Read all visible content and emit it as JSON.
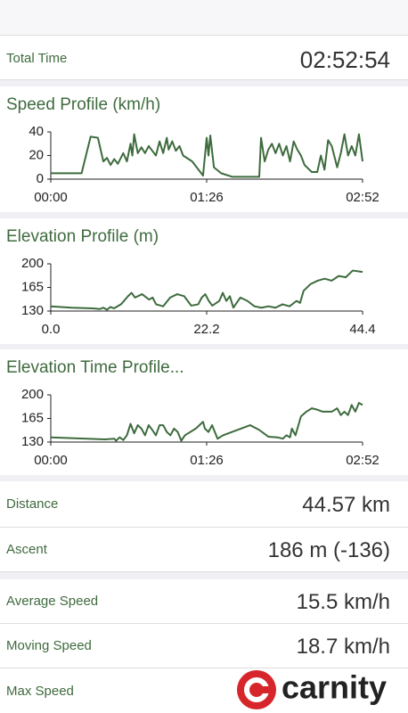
{
  "stats": {
    "total_time": {
      "label": "Total Time",
      "value": "02:52:54"
    },
    "distance": {
      "label": "Distance",
      "value": "44.57 km"
    },
    "ascent": {
      "label": "Ascent",
      "value": "186 m (-136)"
    },
    "average_speed": {
      "label": "Average Speed",
      "value": "15.5 km/h"
    },
    "moving_speed": {
      "label": "Moving Speed",
      "value": "18.7 km/h"
    },
    "max_speed": {
      "label": "Max Speed"
    }
  },
  "logo": {
    "text": "carnity"
  },
  "chart_data": [
    {
      "type": "line",
      "title": "Speed Profile (km/h)",
      "color": "#3d6b3d",
      "x": [
        0,
        17,
        22,
        26,
        29,
        31,
        33,
        35,
        37,
        40,
        42,
        44,
        45,
        46,
        48,
        50,
        52,
        54,
        56,
        58,
        60,
        62,
        64,
        65,
        67,
        69,
        71,
        73,
        78,
        84,
        86,
        87,
        88,
        90,
        94,
        100,
        112,
        115,
        116,
        118,
        120,
        122,
        124,
        126,
        128,
        130,
        132,
        134,
        136,
        138,
        140,
        144,
        147,
        149,
        151,
        153,
        155,
        158,
        160,
        162,
        164,
        166,
        168,
        170,
        172
      ],
      "series": [
        {
          "name": "Speed",
          "values": [
            5,
            5,
            36,
            35,
            15,
            18,
            12,
            17,
            13,
            22,
            15,
            30,
            20,
            38,
            22,
            27,
            22,
            28,
            24,
            20,
            32,
            22,
            35,
            25,
            32,
            24,
            28,
            20,
            15,
            3,
            35,
            20,
            37,
            10,
            5,
            2,
            2,
            2,
            35,
            15,
            25,
            30,
            22,
            30,
            20,
            28,
            15,
            32,
            25,
            20,
            12,
            6,
            6,
            20,
            8,
            33,
            28,
            10,
            22,
            38,
            20,
            28,
            20,
            38,
            15
          ]
        }
      ],
      "xlim": [
        0,
        172
      ],
      "xticks": [
        {
          "value": 0,
          "label": "00:00"
        },
        {
          "value": 86,
          "label": "01:26"
        },
        {
          "value": 172,
          "label": "02:52"
        }
      ],
      "ylim": [
        0,
        40
      ],
      "yticks": [
        0,
        20,
        40
      ]
    },
    {
      "type": "line",
      "title": "Elevation Profile (m)",
      "color": "#3d6b3d",
      "x": [
        0,
        3,
        6,
        7,
        7.5,
        8,
        8.5,
        9,
        10,
        11,
        11.5,
        12,
        13,
        14,
        14.5,
        15,
        16,
        17,
        18,
        19,
        20,
        21,
        21.5,
        22,
        22.5,
        23,
        24,
        24.5,
        25,
        25.5,
        26,
        27,
        28,
        29,
        30,
        31,
        32,
        33,
        34,
        35,
        35.5,
        36,
        37,
        38,
        39,
        40,
        41,
        42,
        43,
        44.4
      ],
      "series": [
        {
          "name": "Elevation",
          "values": [
            137,
            135,
            134,
            133,
            135,
            132,
            136,
            134,
            140,
            152,
            157,
            150,
            155,
            147,
            150,
            140,
            137,
            150,
            155,
            152,
            138,
            140,
            150,
            155,
            145,
            138,
            145,
            157,
            145,
            152,
            135,
            150,
            145,
            137,
            135,
            137,
            135,
            140,
            137,
            145,
            142,
            160,
            170,
            175,
            178,
            175,
            182,
            180,
            190,
            188
          ]
        }
      ],
      "xlim": [
        0,
        44.4
      ],
      "xticks": [
        {
          "value": 0,
          "label": "0.0"
        },
        22.2,
        44.4
      ],
      "ylim": [
        130,
        200
      ],
      "yticks": [
        130,
        165,
        200
      ]
    },
    {
      "type": "line",
      "title": "Elevation Time Profile...",
      "color": "#3d6b3d",
      "x": [
        0,
        30,
        35,
        36,
        38,
        40,
        42,
        44,
        46,
        48,
        50,
        52,
        54,
        56,
        58,
        60,
        62,
        64,
        66,
        68,
        70,
        72,
        74,
        80,
        84,
        85,
        87,
        89,
        92,
        95,
        110,
        115,
        120,
        125,
        128,
        130,
        132,
        133,
        135,
        138,
        141,
        144,
        147,
        150,
        155,
        158,
        160,
        162,
        164,
        166,
        168,
        170,
        172
      ],
      "series": [
        {
          "name": "Elevation",
          "values": [
            137,
            134,
            135,
            132,
            137,
            133,
            140,
            157,
            143,
            155,
            150,
            140,
            155,
            148,
            140,
            155,
            155,
            145,
            140,
            150,
            145,
            132,
            140,
            150,
            160,
            150,
            145,
            155,
            135,
            140,
            155,
            148,
            138,
            137,
            135,
            140,
            137,
            150,
            140,
            168,
            175,
            180,
            178,
            175,
            175,
            180,
            170,
            175,
            170,
            185,
            175,
            188,
            185
          ]
        }
      ],
      "xlim": [
        0,
        172
      ],
      "xticks": [
        {
          "value": 0,
          "label": "00:00"
        },
        {
          "value": 86,
          "label": "01:26"
        },
        {
          "value": 172,
          "label": "02:52"
        }
      ],
      "ylim": [
        130,
        200
      ],
      "yticks": [
        130,
        165,
        200
      ]
    }
  ]
}
